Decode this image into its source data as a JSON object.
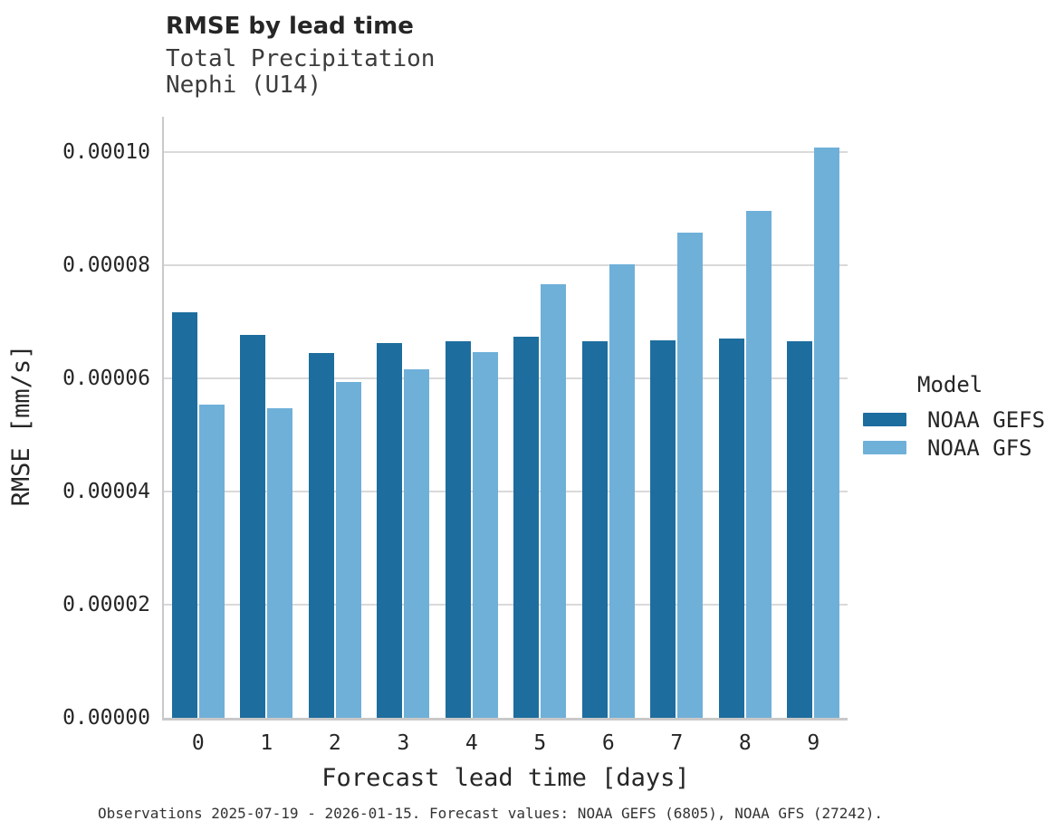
{
  "chart_data": {
    "type": "bar",
    "title": "RMSE by lead time",
    "subtitle_lines": [
      "Total Precipitation",
      "Nephi (U14)"
    ],
    "xlabel": "Forecast lead time [days]",
    "ylabel": "RMSE [mm/s]",
    "categories": [
      "0",
      "1",
      "2",
      "3",
      "4",
      "5",
      "6",
      "7",
      "8",
      "9"
    ],
    "series": [
      {
        "name": "NOAA GEFS",
        "color": "#1d6e9e",
        "values": [
          7.17e-05,
          6.77e-05,
          6.45e-05,
          6.62e-05,
          6.66e-05,
          6.73e-05,
          6.65e-05,
          6.67e-05,
          6.7e-05,
          6.66e-05
        ]
      },
      {
        "name": "NOAA GFS",
        "color": "#6fb0d9",
        "values": [
          5.53e-05,
          5.47e-05,
          5.94e-05,
          6.16e-05,
          6.46e-05,
          7.66e-05,
          8.02e-05,
          8.57e-05,
          8.95e-05,
          0.0001008
        ]
      }
    ],
    "ylim": [
      0,
      0.0001062
    ],
    "yticks": [
      {
        "value": 0.0,
        "label": "0.00000"
      },
      {
        "value": 2e-05,
        "label": "0.00002"
      },
      {
        "value": 4e-05,
        "label": "0.00004"
      },
      {
        "value": 6e-05,
        "label": "0.00006"
      },
      {
        "value": 8e-05,
        "label": "0.00008"
      },
      {
        "value": 0.0001,
        "label": "0.00010"
      }
    ],
    "grid": "horizontal",
    "legend": {
      "title": "Model",
      "position": "right"
    },
    "caption": "Observations 2025-07-19 - 2026-01-15. Forecast values: NOAA GEFS (6805), NOAA GFS (27242)."
  },
  "colors": {
    "background": "#ffffff",
    "grid": "#d9d9d9",
    "spine": "#c9c9c9",
    "title_text": "#262626",
    "subtitle_text": "#3c3c3c",
    "tick_text": "#262626",
    "caption_text": "#333333"
  }
}
